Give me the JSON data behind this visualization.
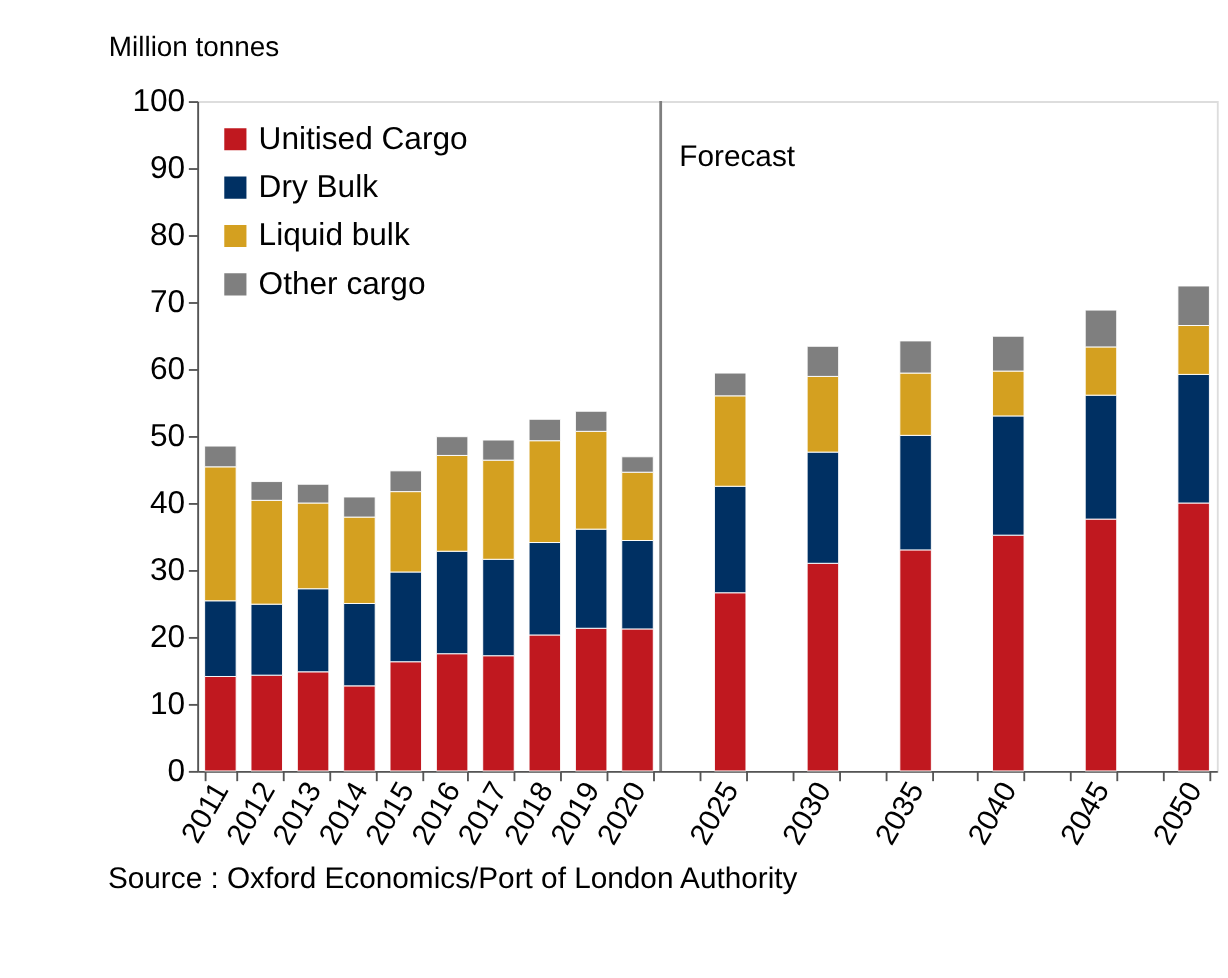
{
  "chart_data": {
    "type": "bar",
    "stacked": true,
    "ylabel": "Million tonnes",
    "categories": [
      "2011",
      "2012",
      "2013",
      "2014",
      "2015",
      "2016",
      "2017",
      "2018",
      "2019",
      "2020",
      null,
      "2025",
      null,
      "2030",
      null,
      "2035",
      null,
      "2040",
      null,
      "2045",
      null,
      "2050"
    ],
    "series": [
      {
        "name": "Unitised Cargo",
        "color": "#c0181f",
        "values": [
          14.1,
          14.3,
          14.8,
          12.7,
          16.3,
          17.5,
          17.2,
          20.3,
          21.3,
          21.2,
          null,
          26.6,
          null,
          31.0,
          null,
          33.0,
          null,
          35.2,
          null,
          37.6,
          null,
          40.0
        ]
      },
      {
        "name": "Dry Bulk",
        "color": "#003063",
        "values": [
          11.3,
          10.6,
          12.4,
          12.3,
          13.4,
          15.3,
          14.4,
          13.8,
          14.8,
          13.2,
          null,
          15.9,
          null,
          16.6,
          null,
          17.1,
          null,
          17.8,
          null,
          18.5,
          null,
          19.2
        ]
      },
      {
        "name": "Liquid bulk",
        "color": "#d4a020",
        "values": [
          20.0,
          15.5,
          12.8,
          12.9,
          12.0,
          14.3,
          14.8,
          15.2,
          14.6,
          10.2,
          null,
          13.5,
          null,
          11.3,
          null,
          9.3,
          null,
          6.7,
          null,
          7.2,
          null,
          7.3
        ]
      },
      {
        "name": "Other cargo",
        "color": "#7f7f7f",
        "values": [
          3.1,
          2.8,
          2.8,
          3.0,
          3.1,
          2.8,
          3.0,
          3.2,
          3.0,
          2.3,
          null,
          3.4,
          null,
          4.5,
          null,
          4.8,
          null,
          5.2,
          null,
          5.5,
          null,
          5.9
        ]
      }
    ],
    "ylim": [
      0,
      100
    ],
    "yticks": [
      0,
      10,
      20,
      30,
      40,
      50,
      60,
      70,
      80,
      90,
      100
    ],
    "ref_lines": [
      {
        "axis": "x",
        "value": "2020",
        "label": "Forecast",
        "color": "#7f7f7f"
      }
    ],
    "annotations": [
      "Source : Oxford Economics/Port of London Authority"
    ],
    "legend": "top left",
    "grid": false
  }
}
